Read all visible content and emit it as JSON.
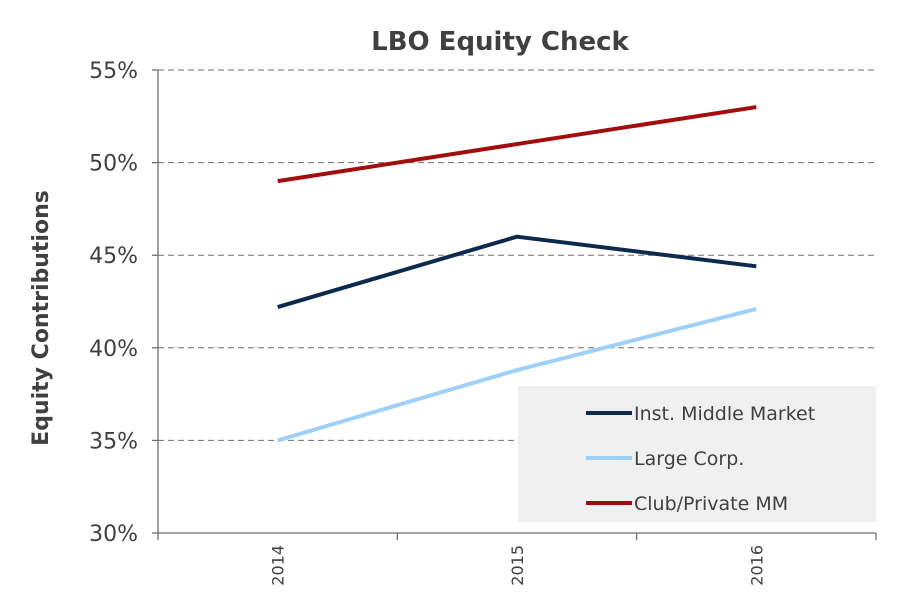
{
  "chart_data": {
    "type": "line",
    "title": "LBO Equity Check",
    "xlabel": "",
    "ylabel": "Equity Contributions",
    "x": [
      "2014",
      "2015",
      "2016"
    ],
    "ylim": [
      30,
      55
    ],
    "ytick_values": [
      30,
      35,
      40,
      45,
      50,
      55
    ],
    "ytick_labels": [
      "30%",
      "35%",
      "40%",
      "45%",
      "50%",
      "55%"
    ],
    "grid": true,
    "legend_position": "bottom-right",
    "series": [
      {
        "name": "Inst. Middle Market",
        "color": "#0b2a4d",
        "values": [
          42.2,
          46.0,
          44.4
        ]
      },
      {
        "name": "Large Corp.",
        "color": "#9fd0f7",
        "values": [
          35.0,
          38.8,
          42.1
        ]
      },
      {
        "name": "Club/Private MM",
        "color": "#a30d0d",
        "values": [
          49.0,
          51.0,
          53.0
        ]
      }
    ]
  }
}
